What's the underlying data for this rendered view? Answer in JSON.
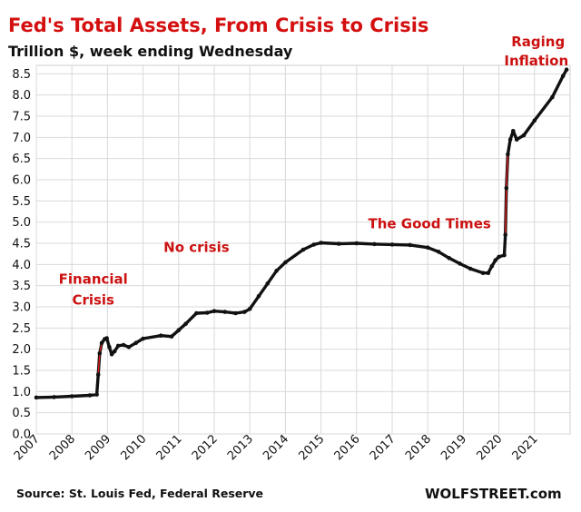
{
  "chart_data": {
    "type": "line",
    "title": "Fed's Total Assets, From Crisis to Crisis",
    "subtitle": "Trillion $, week ending Wednesday",
    "source": "Source: St. Louis Fed, Federal Reserve",
    "brand": "WOLFSTREET.com",
    "ylim": [
      0,
      8.7
    ],
    "xlim": [
      2007.0,
      2022.0
    ],
    "y_ticks": [
      "0.0",
      "0.5",
      "1.0",
      "1.5",
      "2.0",
      "2.5",
      "3.0",
      "3.5",
      "4.0",
      "4.5",
      "5.0",
      "5.5",
      "6.0",
      "6.5",
      "7.0",
      "7.5",
      "8.0",
      "8.5"
    ],
    "x_ticks": [
      "2007",
      "2008",
      "2009",
      "2010",
      "2011",
      "2012",
      "2013",
      "2014",
      "2015",
      "2016",
      "2017",
      "2018",
      "2019",
      "2020",
      "2021"
    ],
    "grid": true,
    "colors": {
      "line": "#111111",
      "crisis_segment": "#d81e1e",
      "title": "#d40f0f",
      "annotation": "#cc1111"
    },
    "annotations": [
      {
        "text": "Financial",
        "x": 2008.6,
        "y": 3.55
      },
      {
        "text": "Crisis",
        "x": 2008.6,
        "y": 3.05
      },
      {
        "text": "No crisis",
        "x": 2011.5,
        "y": 4.3
      },
      {
        "text": "The Good Times",
        "x": 2018.05,
        "y": 4.85
      },
      {
        "text": "Raging",
        "x": 2021.1,
        "y": 9.15
      },
      {
        "text": "Inflation",
        "x": 2021.05,
        "y": 8.7
      }
    ],
    "series": [
      {
        "values": [
          [
            2007.0,
            0.86
          ],
          [
            2007.5,
            0.87
          ],
          [
            2008.0,
            0.89
          ],
          [
            2008.5,
            0.91
          ],
          [
            2008.7,
            0.93
          ],
          [
            2008.74,
            1.4
          ],
          [
            2008.78,
            1.9
          ],
          [
            2008.84,
            2.15
          ],
          [
            2008.92,
            2.24
          ],
          [
            2008.98,
            2.26
          ],
          [
            2009.05,
            2.05
          ],
          [
            2009.12,
            1.88
          ],
          [
            2009.2,
            1.95
          ],
          [
            2009.3,
            2.08
          ],
          [
            2009.45,
            2.1
          ],
          [
            2009.6,
            2.05
          ],
          [
            2009.8,
            2.15
          ],
          [
            2010.0,
            2.25
          ],
          [
            2010.5,
            2.32
          ],
          [
            2010.8,
            2.3
          ],
          [
            2011.0,
            2.45
          ],
          [
            2011.2,
            2.6
          ],
          [
            2011.5,
            2.85
          ],
          [
            2011.8,
            2.86
          ],
          [
            2012.0,
            2.9
          ],
          [
            2012.3,
            2.88
          ],
          [
            2012.6,
            2.85
          ],
          [
            2012.85,
            2.88
          ],
          [
            2013.0,
            2.95
          ],
          [
            2013.25,
            3.25
          ],
          [
            2013.5,
            3.55
          ],
          [
            2013.75,
            3.85
          ],
          [
            2014.0,
            4.05
          ],
          [
            2014.5,
            4.35
          ],
          [
            2014.8,
            4.47
          ],
          [
            2015.0,
            4.51
          ],
          [
            2015.5,
            4.49
          ],
          [
            2016.0,
            4.5
          ],
          [
            2016.5,
            4.48
          ],
          [
            2017.0,
            4.47
          ],
          [
            2017.5,
            4.46
          ],
          [
            2018.0,
            4.4
          ],
          [
            2018.3,
            4.3
          ],
          [
            2018.6,
            4.15
          ],
          [
            2018.9,
            4.02
          ],
          [
            2019.2,
            3.9
          ],
          [
            2019.55,
            3.8
          ],
          [
            2019.7,
            3.8
          ],
          [
            2019.8,
            3.96
          ],
          [
            2019.9,
            4.1
          ],
          [
            2020.0,
            4.18
          ],
          [
            2020.15,
            4.22
          ],
          [
            2020.18,
            4.7
          ],
          [
            2020.21,
            5.8
          ],
          [
            2020.25,
            6.6
          ],
          [
            2020.32,
            6.95
          ],
          [
            2020.4,
            7.15
          ],
          [
            2020.5,
            6.95
          ],
          [
            2020.7,
            7.05
          ],
          [
            2021.0,
            7.4
          ],
          [
            2021.5,
            7.95
          ],
          [
            2021.8,
            8.45
          ],
          [
            2021.9,
            8.6
          ]
        ]
      }
    ]
  }
}
